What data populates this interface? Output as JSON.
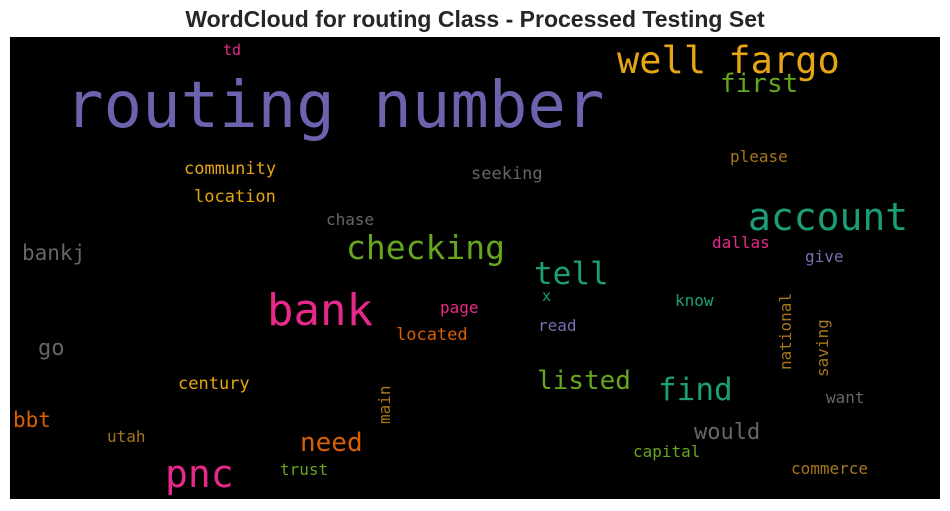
{
  "title": "WordCloud for routing Class - Processed Testing Set",
  "chart_data": {
    "type": "wordcloud",
    "background": "#000000",
    "words": [
      {
        "text": "routing number",
        "color": "#6b63ad",
        "size": 64,
        "rotated": false
      },
      {
        "text": "well fargo",
        "color": "#e6a614",
        "size": 37,
        "rotated": false
      },
      {
        "text": "account",
        "color": "#1b9e77",
        "size": 38,
        "rotated": false
      },
      {
        "text": "bank",
        "color": "#e7298a",
        "size": 44,
        "rotated": false
      },
      {
        "text": "pnc",
        "color": "#e7298a",
        "size": 38,
        "rotated": false
      },
      {
        "text": "checking",
        "color": "#66a61e",
        "size": 33,
        "rotated": false
      },
      {
        "text": "tell",
        "color": "#1b9e77",
        "size": 31,
        "rotated": false
      },
      {
        "text": "find",
        "color": "#1b9e77",
        "size": 31,
        "rotated": false
      },
      {
        "text": "first",
        "color": "#66a61e",
        "size": 26,
        "rotated": false
      },
      {
        "text": "listed",
        "color": "#66a61e",
        "size": 26,
        "rotated": false
      },
      {
        "text": "need",
        "color": "#d95f02",
        "size": 26,
        "rotated": false
      },
      {
        "text": "would",
        "color": "#666666",
        "size": 22,
        "rotated": false
      },
      {
        "text": "bankj",
        "color": "#666666",
        "size": 21,
        "rotated": false
      },
      {
        "text": "go",
        "color": "#666666",
        "size": 22,
        "rotated": false
      },
      {
        "text": "bbt",
        "color": "#d95f02",
        "size": 21,
        "rotated": false
      },
      {
        "text": "community",
        "color": "#e6a614",
        "size": 17,
        "rotated": false
      },
      {
        "text": "location",
        "color": "#e6a614",
        "size": 17,
        "rotated": false
      },
      {
        "text": "century",
        "color": "#e6a614",
        "size": 17,
        "rotated": false
      },
      {
        "text": "seeking",
        "color": "#666666",
        "size": 17,
        "rotated": false
      },
      {
        "text": "please",
        "color": "#a6761d",
        "size": 16,
        "rotated": false
      },
      {
        "text": "chase",
        "color": "#666666",
        "size": 16,
        "rotated": false
      },
      {
        "text": "dallas",
        "color": "#e7298a",
        "size": 16,
        "rotated": false
      },
      {
        "text": "give",
        "color": "#7570b3",
        "size": 16,
        "rotated": false
      },
      {
        "text": "page",
        "color": "#e7298a",
        "size": 16,
        "rotated": false
      },
      {
        "text": "x",
        "color": "#1b9e77",
        "size": 15,
        "rotated": false
      },
      {
        "text": "know",
        "color": "#1b9e77",
        "size": 16,
        "rotated": false
      },
      {
        "text": "read",
        "color": "#7570b3",
        "size": 16,
        "rotated": false
      },
      {
        "text": "located",
        "color": "#d95f02",
        "size": 17,
        "rotated": false
      },
      {
        "text": "national",
        "color": "#a6761d",
        "size": 16,
        "rotated": true
      },
      {
        "text": "saving",
        "color": "#a6761d",
        "size": 16,
        "rotated": true
      },
      {
        "text": "main",
        "color": "#a6761d",
        "size": 16,
        "rotated": true
      },
      {
        "text": "want",
        "color": "#666666",
        "size": 16,
        "rotated": false
      },
      {
        "text": "utah",
        "color": "#a6761d",
        "size": 16,
        "rotated": false
      },
      {
        "text": "capital",
        "color": "#66a61e",
        "size": 16,
        "rotated": false
      },
      {
        "text": "trust",
        "color": "#66a61e",
        "size": 16,
        "rotated": false
      },
      {
        "text": "commerce",
        "color": "#a6761d",
        "size": 16,
        "rotated": false
      },
      {
        "text": "td",
        "color": "#e7298a",
        "size": 15,
        "rotated": false
      }
    ]
  }
}
